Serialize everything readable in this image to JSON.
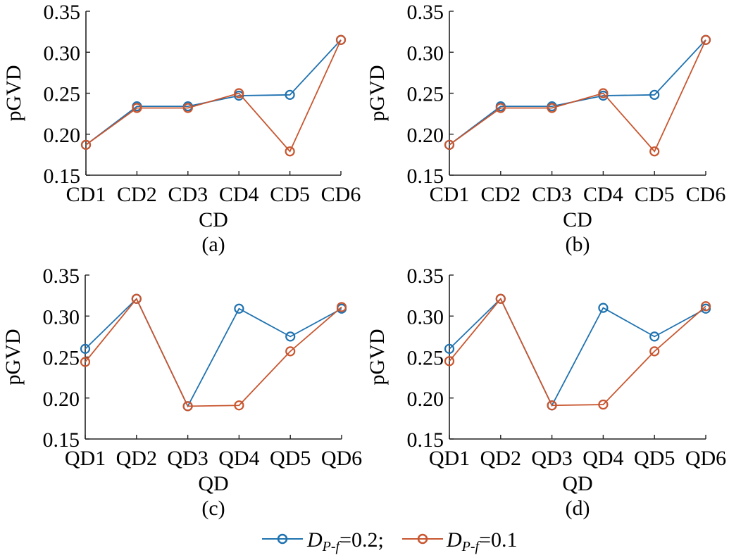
{
  "chart_data": [
    {
      "type": "line",
      "panel": "(a)",
      "title": "",
      "xlabel": "CD",
      "ylabel": "pGVD",
      "categories": [
        "CD1",
        "CD2",
        "CD3",
        "CD4",
        "CD5",
        "CD6"
      ],
      "ylim": [
        0.15,
        0.35
      ],
      "yticks": [
        "0.15",
        "0.20",
        "0.25",
        "0.30",
        "0.35"
      ],
      "grid": false,
      "series": [
        {
          "name": "D_{P-f}=0.2",
          "color": "#1f72b0",
          "values": [
            0.187,
            0.234,
            0.234,
            0.247,
            0.248,
            0.315
          ]
        },
        {
          "name": "D_{P-f}=0.1",
          "color": "#c8562f",
          "values": [
            0.187,
            0.232,
            0.232,
            0.25,
            0.179,
            0.315
          ]
        }
      ]
    },
    {
      "type": "line",
      "panel": "(b)",
      "title": "",
      "xlabel": "CD",
      "ylabel": "pGVD",
      "categories": [
        "CD1",
        "CD2",
        "CD3",
        "CD4",
        "CD5",
        "CD6"
      ],
      "ylim": [
        0.15,
        0.35
      ],
      "yticks": [
        "0.15",
        "0.20",
        "0.25",
        "0.30",
        "0.35"
      ],
      "grid": false,
      "series": [
        {
          "name": "D_{P-f}=0.2",
          "color": "#1f72b0",
          "values": [
            0.187,
            0.234,
            0.234,
            0.247,
            0.248,
            0.315
          ]
        },
        {
          "name": "D_{P-f}=0.1",
          "color": "#c8562f",
          "values": [
            0.187,
            0.232,
            0.232,
            0.25,
            0.179,
            0.315
          ]
        }
      ]
    },
    {
      "type": "line",
      "panel": "(c)",
      "title": "",
      "xlabel": "QD",
      "ylabel": "pGVD",
      "categories": [
        "QD1",
        "QD2",
        "QD3",
        "QD4",
        "QD5",
        "QD6"
      ],
      "ylim": [
        0.15,
        0.35
      ],
      "yticks": [
        "0.15",
        "0.20",
        "0.25",
        "0.30",
        "0.35"
      ],
      "grid": false,
      "series": [
        {
          "name": "D_{P-f}=0.2",
          "color": "#1f72b0",
          "values": [
            0.26,
            0.321,
            0.19,
            0.309,
            0.275,
            0.309
          ]
        },
        {
          "name": "D_{P-f}=0.1",
          "color": "#c8562f",
          "values": [
            0.244,
            0.321,
            0.19,
            0.191,
            0.257,
            0.311
          ]
        }
      ]
    },
    {
      "type": "line",
      "panel": "(d)",
      "title": "",
      "xlabel": "QD",
      "ylabel": "pGVD",
      "categories": [
        "QD1",
        "QD2",
        "QD3",
        "QD4",
        "QD5",
        "QD6"
      ],
      "ylim": [
        0.15,
        0.35
      ],
      "yticks": [
        "0.15",
        "0.20",
        "0.25",
        "0.30",
        "0.35"
      ],
      "grid": false,
      "series": [
        {
          "name": "D_{P-f}=0.2",
          "color": "#1f72b0",
          "values": [
            0.26,
            0.321,
            0.191,
            0.31,
            0.275,
            0.309
          ]
        },
        {
          "name": "D_{P-f}=0.1",
          "color": "#c8562f",
          "values": [
            0.245,
            0.321,
            0.191,
            0.192,
            0.257,
            0.312
          ]
        }
      ]
    }
  ],
  "legend": {
    "placement": "bottom-center",
    "items": [
      {
        "symbol": "D",
        "subscript": "P-f",
        "suffix": "=0.2;",
        "color": "#1f72b0"
      },
      {
        "symbol": "D",
        "subscript": "P-f",
        "suffix": "=0.1",
        "color": "#c8562f"
      }
    ]
  }
}
